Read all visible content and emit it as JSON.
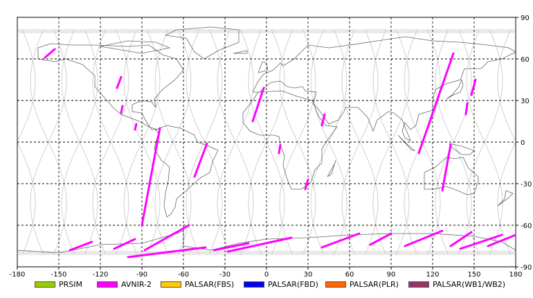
{
  "chart_data": {
    "type": "map",
    "title": "",
    "xlabel": "",
    "ylabel": "",
    "xlim": [
      -180,
      180
    ],
    "ylim": [
      -90,
      90
    ],
    "grid": true,
    "x_ticks": [
      "-180",
      "-150",
      "-120",
      "-90",
      "-60",
      "-30",
      "0",
      "30",
      "60",
      "90",
      "120",
      "150",
      "180"
    ],
    "y_ticks": [
      "90",
      "60",
      "30",
      "0",
      "-30",
      "-60",
      "-90"
    ],
    "legend_position": "bottom",
    "legend": [
      {
        "name": "PRSIM",
        "color": "#99cc00"
      },
      {
        "name": "AVNIR-2",
        "color": "#ff00ff"
      },
      {
        "name": "PALSAR(FBS)",
        "color": "#ffcc00"
      },
      {
        "name": "PALSAR(FBD)",
        "color": "#0000ee"
      },
      {
        "name": "PALSAR(PLR)",
        "color": "#ff6600"
      },
      {
        "name": "PALSAR(WB1/WB2)",
        "color": "#993366"
      }
    ],
    "avnir2_segments": [
      [
        [
          -153,
          67
        ],
        [
          -160,
          61
        ]
      ],
      [
        [
          -105,
          47
        ],
        [
          -108,
          39
        ]
      ],
      [
        [
          -104,
          26
        ],
        [
          -105,
          21
        ]
      ],
      [
        [
          -94,
          13
        ],
        [
          -95,
          9
        ]
      ],
      [
        [
          -77,
          10
        ],
        [
          -90,
          -60
        ]
      ],
      [
        [
          -43,
          -1
        ],
        [
          -52,
          -25
        ]
      ],
      [
        [
          -2,
          39
        ],
        [
          -10,
          15
        ]
      ],
      [
        [
          10,
          -2
        ],
        [
          9,
          -8
        ]
      ],
      [
        [
          42,
          20
        ],
        [
          40,
          12
        ]
      ],
      [
        [
          30,
          -27
        ],
        [
          28,
          -34
        ]
      ],
      [
        [
          135,
          64
        ],
        [
          110,
          -8
        ]
      ],
      [
        [
          133,
          -2
        ],
        [
          127,
          -35
        ]
      ],
      [
        [
          151,
          45
        ],
        [
          148,
          34
        ]
      ],
      [
        [
          145,
          28
        ],
        [
          144,
          20
        ]
      ],
      [
        [
          -56,
          -60
        ],
        [
          -88,
          -78
        ]
      ],
      [
        [
          -95,
          -70
        ],
        [
          -110,
          -77
        ]
      ],
      [
        [
          -126,
          -72
        ],
        [
          -142,
          -78
        ]
      ],
      [
        [
          -44,
          -76
        ],
        [
          -100,
          -83
        ]
      ],
      [
        [
          -13,
          -73
        ],
        [
          -38,
          -78
        ]
      ],
      [
        [
          18,
          -69
        ],
        [
          -28,
          -79
        ]
      ],
      [
        [
          67,
          -66
        ],
        [
          40,
          -76
        ]
      ],
      [
        [
          90,
          -66
        ],
        [
          75,
          -74
        ]
      ],
      [
        [
          127,
          -64
        ],
        [
          100,
          -75
        ]
      ],
      [
        [
          148,
          -65
        ],
        [
          133,
          -75
        ]
      ],
      [
        [
          170,
          -67
        ],
        [
          140,
          -77
        ]
      ],
      [
        [
          180,
          -67
        ],
        [
          160,
          -75
        ]
      ]
    ],
    "orbit_track_count": 16
  }
}
